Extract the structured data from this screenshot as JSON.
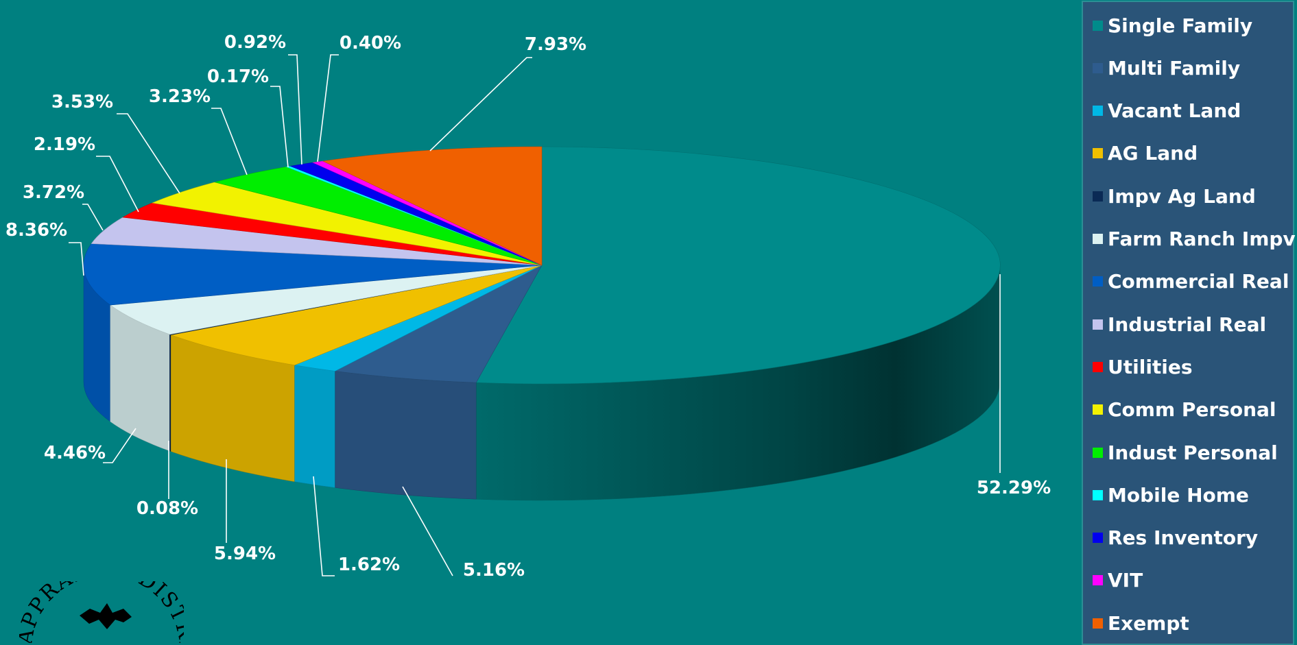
{
  "chart_data": {
    "type": "pie",
    "three_d": true,
    "legend_position": "right",
    "series": [
      {
        "name": "Single Family",
        "percent": 52.29,
        "label": "52.29%",
        "color": "#008b8b"
      },
      {
        "name": "Multi Family",
        "percent": 5.16,
        "label": "5.16%",
        "color": "#2e5c8e"
      },
      {
        "name": "Vacant Land",
        "percent": 1.62,
        "label": "1.62%",
        "color": "#00b8e6"
      },
      {
        "name": "AG Land",
        "percent": 5.94,
        "label": "5.94%",
        "color": "#f0c000"
      },
      {
        "name": "Impv Ag Land",
        "percent": 0.08,
        "label": "0.08%",
        "color": "#0a2a55"
      },
      {
        "name": "Farm Ranch Impv",
        "percent": 4.46,
        "label": "4.46%",
        "color": "#dcf2f2"
      },
      {
        "name": "Commercial Real",
        "percent": 8.36,
        "label": "8.36%",
        "color": "#005ec4"
      },
      {
        "name": "Industrial Real",
        "percent": 3.72,
        "label": "3.72%",
        "color": "#c4c4ee"
      },
      {
        "name": "Utilities",
        "percent": 2.19,
        "label": "2.19%",
        "color": "#ff0000"
      },
      {
        "name": "Comm Personal",
        "percent": 3.53,
        "label": "3.53%",
        "color": "#f2f200"
      },
      {
        "name": "Indust Personal",
        "percent": 3.23,
        "label": "3.23%",
        "color": "#00ee00"
      },
      {
        "name": "Mobile Home",
        "percent": 0.17,
        "label": "0.17%",
        "color": "#00ffff"
      },
      {
        "name": "Res Inventory",
        "percent": 0.92,
        "label": "0.92%",
        "color": "#0000ee"
      },
      {
        "name": "VIT",
        "percent": 0.4,
        "label": "0.40%",
        "color": "#ff00ff"
      },
      {
        "name": "Exempt",
        "percent": 7.93,
        "label": "7.93%",
        "color": "#f06000"
      }
    ]
  },
  "logo": {
    "seal_text": "APPRAISAL DISTRICT"
  }
}
